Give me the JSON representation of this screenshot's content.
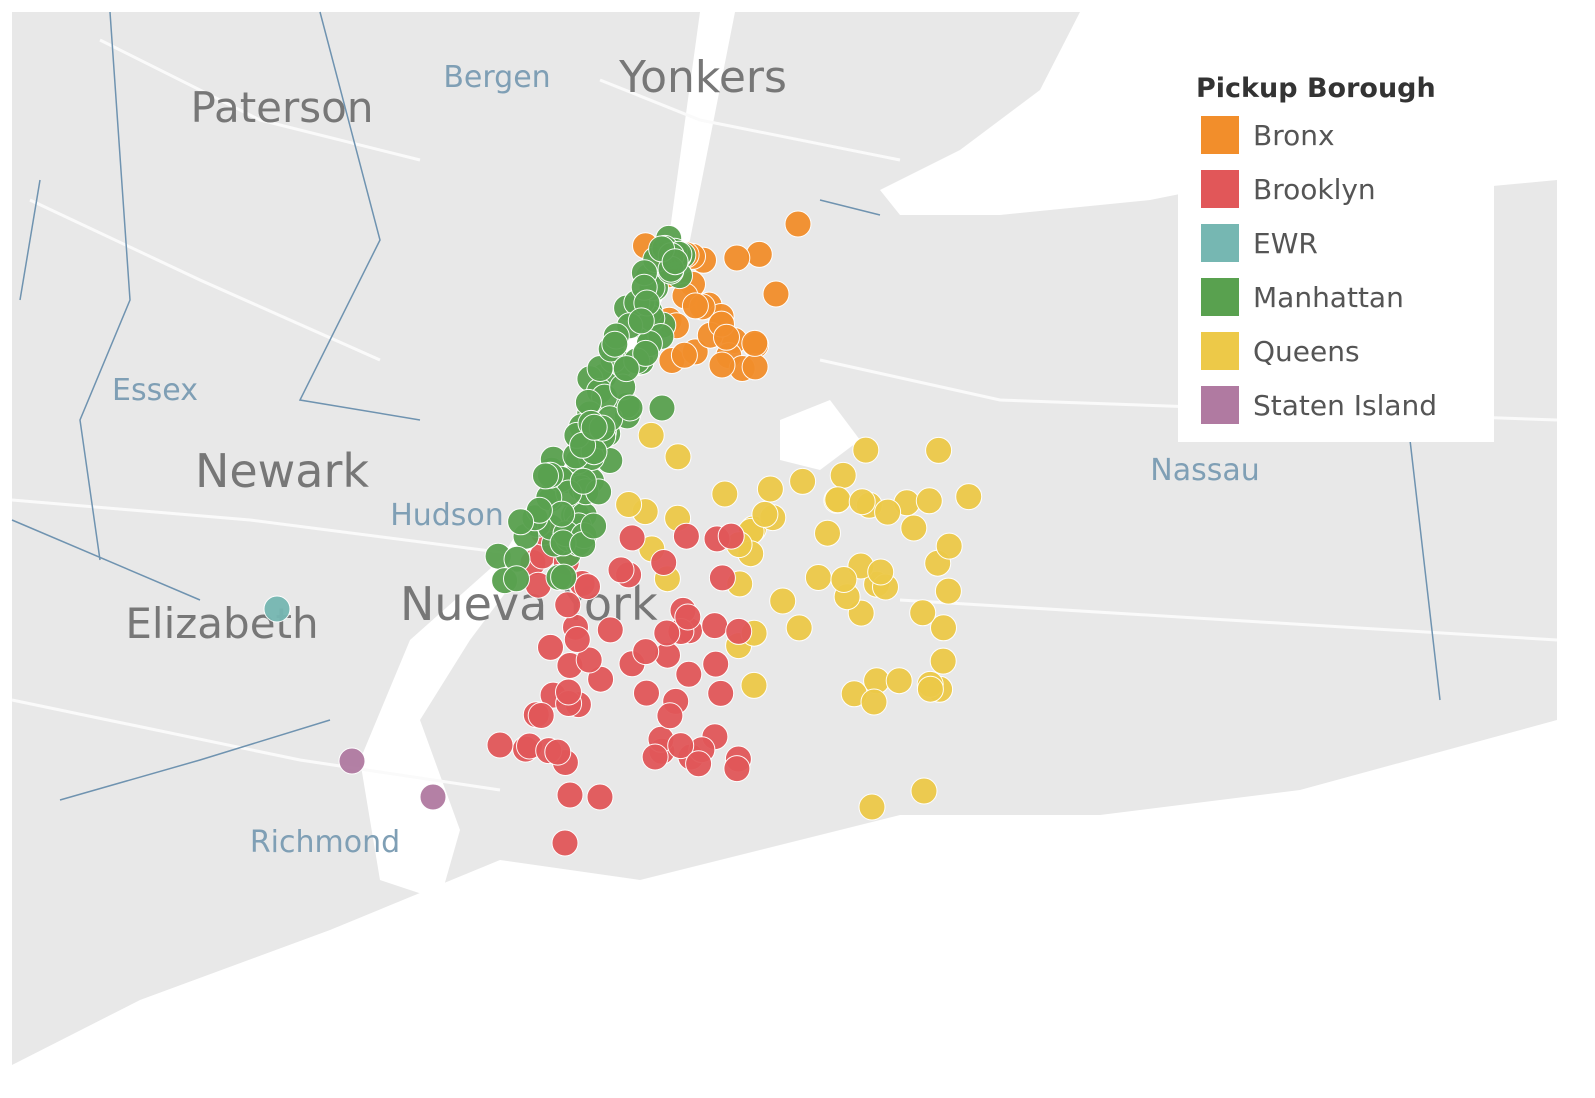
{
  "legend": {
    "title": "Pickup Borough",
    "items": [
      {
        "label": "Bronx",
        "color": "#f28e2b"
      },
      {
        "label": "Brooklyn",
        "color": "#e15759"
      },
      {
        "label": "EWR",
        "color": "#76b7b2"
      },
      {
        "label": "Manhattan",
        "color": "#59a14f"
      },
      {
        "label": "Queens",
        "color": "#edc948"
      },
      {
        "label": "Staten Island",
        "color": "#b07aa1"
      }
    ]
  },
  "map_labels": [
    "Bergen",
    "Yonkers",
    "Paterson",
    "Essex",
    "Newark",
    "Hudson",
    "Elizabeth",
    "Nueva York",
    "Richmond",
    "Nassau"
  ]
}
